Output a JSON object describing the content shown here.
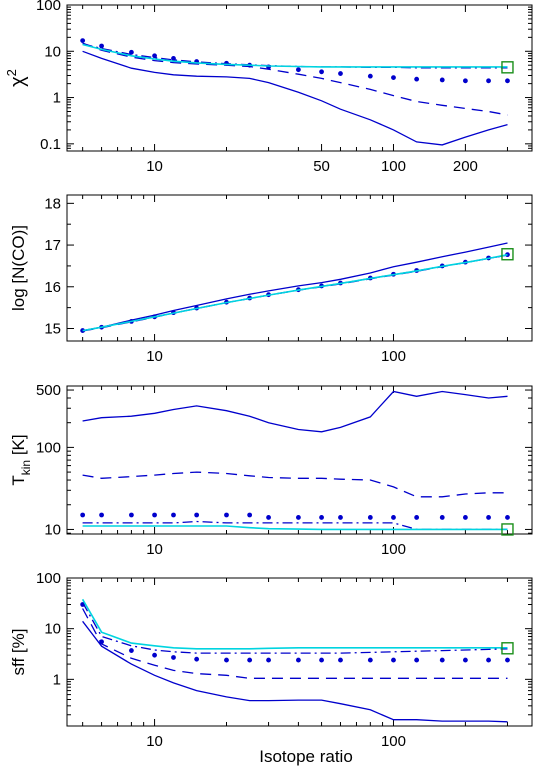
{
  "figure": {
    "xlabel": "Isotope ratio"
  },
  "colors": {
    "series_solid": "#0000cc",
    "series_dashed": "#0000cc",
    "series_dotted": "#0000cc",
    "series_dashdot": "#0000cc",
    "series_cyan": "#00d4e0",
    "marker": "#1a8f1a",
    "axes": "#000000"
  },
  "chart_data": [
    {
      "type": "line",
      "ylabel": "χ",
      "ylabel_sup": "2",
      "xscale": "log",
      "yscale": "log",
      "xlim": [
        4.3,
        380
      ],
      "ylim": [
        0.07,
        100
      ],
      "xticks": [
        10,
        50,
        100,
        200
      ],
      "xtick_labels": [
        "10",
        "50",
        "100",
        "200"
      ],
      "yticks": [
        0.1,
        1,
        10,
        100
      ],
      "ytick_labels": [
        "0.1",
        "1",
        "10",
        "100"
      ],
      "x": [
        5,
        6,
        8,
        10,
        12,
        15,
        20,
        25,
        30,
        40,
        50,
        60,
        80,
        100,
        125,
        160,
        200,
        250,
        300
      ],
      "series": [
        {
          "style": "solid",
          "values": [
            10,
            7,
            4.3,
            3.5,
            3.1,
            2.9,
            2.8,
            2.6,
            2.1,
            1.3,
            0.85,
            0.56,
            0.33,
            0.2,
            0.11,
            0.095,
            0.14,
            0.2,
            0.26
          ]
        },
        {
          "style": "dashed",
          "values": [
            15,
            10.5,
            7.5,
            6.3,
            5.7,
            5.3,
            5.0,
            4.7,
            4.1,
            3.2,
            2.6,
            2.1,
            1.5,
            1.1,
            0.82,
            0.68,
            0.58,
            0.5,
            0.42
          ]
        },
        {
          "style": "dotted",
          "values": [
            17,
            13,
            9.5,
            8,
            7,
            6,
            5.5,
            5,
            4.6,
            4,
            3.6,
            3.3,
            2.9,
            2.7,
            2.5,
            2.4,
            2.3,
            2.3,
            2.3
          ]
        },
        {
          "style": "dashdot",
          "values": [
            14.5,
            11.5,
            8.5,
            7.3,
            6.5,
            5.9,
            5.4,
            5.1,
            4.9,
            4.7,
            4.6,
            4.6,
            4.5,
            4.5,
            4.4,
            4.4,
            4.4,
            4.4,
            4.4
          ]
        },
        {
          "style": "cyan",
          "values": [
            14,
            11,
            8,
            6.8,
            6.1,
            5.6,
            5.2,
            5.0,
            4.8,
            4.7,
            4.6,
            4.6,
            4.6,
            4.6,
            4.6,
            4.6,
            4.6,
            4.6,
            4.6
          ]
        }
      ],
      "marker": {
        "x": 300,
        "y": 4.5,
        "shape": "square"
      }
    },
    {
      "type": "line",
      "ylabel": "log [N(CO)]",
      "xscale": "log",
      "yscale": "linear",
      "xlim": [
        4.3,
        380
      ],
      "ylim": [
        14.7,
        18.2
      ],
      "xticks": [
        10,
        100
      ],
      "xtick_labels": [
        "10",
        "100"
      ],
      "yticks": [
        15,
        16,
        17,
        18
      ],
      "ytick_labels": [
        "15",
        "16",
        "17",
        "18"
      ],
      "x": [
        5,
        6,
        8,
        10,
        12,
        15,
        20,
        25,
        30,
        40,
        50,
        60,
        80,
        100,
        125,
        160,
        200,
        250,
        300
      ],
      "series": [
        {
          "style": "solid",
          "values": [
            14.95,
            15.03,
            15.2,
            15.32,
            15.43,
            15.55,
            15.71,
            15.82,
            15.9,
            16.02,
            16.1,
            16.18,
            16.33,
            16.48,
            16.59,
            16.72,
            16.83,
            16.95,
            17.05
          ]
        },
        {
          "style": "dashed",
          "values": [
            14.94,
            15.02,
            15.16,
            15.27,
            15.37,
            15.48,
            15.62,
            15.72,
            15.8,
            15.92,
            16.0,
            16.07,
            16.19,
            16.28,
            16.37,
            16.48,
            16.58,
            16.68,
            16.76
          ]
        },
        {
          "style": "dotted",
          "values": [
            14.95,
            15.03,
            15.17,
            15.28,
            15.38,
            15.49,
            15.63,
            15.73,
            15.81,
            15.93,
            16.02,
            16.09,
            16.21,
            16.3,
            16.39,
            16.5,
            16.59,
            16.69,
            16.77
          ]
        },
        {
          "style": "dashdot",
          "values": [
            14.95,
            15.03,
            15.17,
            15.28,
            15.37,
            15.48,
            15.62,
            15.72,
            15.8,
            15.92,
            16.01,
            16.08,
            16.2,
            16.29,
            16.38,
            16.49,
            16.58,
            16.68,
            16.76
          ]
        },
        {
          "style": "cyan",
          "values": [
            14.95,
            15.03,
            15.17,
            15.28,
            15.37,
            15.48,
            15.62,
            15.72,
            15.8,
            15.92,
            16.01,
            16.08,
            16.2,
            16.29,
            16.38,
            16.49,
            16.58,
            16.68,
            16.77
          ]
        }
      ],
      "marker": {
        "x": 300,
        "y": 16.78,
        "shape": "square"
      }
    },
    {
      "type": "line",
      "ylabel": "T",
      "ylabel_sub": "kin",
      "ylabel_suffix": " [K]",
      "xscale": "log",
      "yscale": "log",
      "xlim": [
        4.3,
        380
      ],
      "ylim": [
        8.8,
        560
      ],
      "xticks": [
        10,
        100
      ],
      "xtick_labels": [
        "10",
        "100"
      ],
      "yticks": [
        10,
        100,
        500
      ],
      "ytick_labels": [
        "10",
        "100",
        "500"
      ],
      "x": [
        5,
        6,
        8,
        10,
        12,
        15,
        20,
        25,
        30,
        40,
        50,
        60,
        80,
        100,
        125,
        160,
        200,
        250,
        300
      ],
      "series": [
        {
          "style": "solid",
          "values": [
            210,
            230,
            240,
            260,
            290,
            320,
            280,
            240,
            200,
            165,
            155,
            175,
            235,
            480,
            420,
            480,
            440,
            400,
            420
          ]
        },
        {
          "style": "dashed",
          "values": [
            46,
            42,
            44,
            46,
            48,
            50,
            48,
            45,
            43,
            42,
            42,
            41,
            40,
            33,
            25,
            25,
            27,
            28,
            28
          ]
        },
        {
          "style": "dotted",
          "values": [
            15,
            15,
            15,
            15,
            15,
            15,
            15,
            15,
            14,
            14,
            14,
            14,
            14,
            14,
            14,
            14,
            14,
            14,
            14
          ]
        },
        {
          "style": "dashdot",
          "values": [
            12,
            12,
            12,
            12,
            12,
            12.5,
            12,
            12,
            12,
            12,
            12,
            12,
            12,
            12,
            10,
            10,
            10,
            10,
            10
          ]
        },
        {
          "style": "cyan",
          "values": [
            11,
            11,
            11,
            11,
            11,
            11,
            11,
            10.5,
            10.2,
            10.1,
            10,
            10,
            10,
            10,
            10,
            10,
            10,
            10,
            10
          ]
        }
      ],
      "marker": {
        "x": 300,
        "y": 10,
        "shape": "square"
      }
    },
    {
      "type": "line",
      "ylabel": "sff [%]",
      "xscale": "log",
      "yscale": "log",
      "xlim": [
        4.3,
        380
      ],
      "ylim": [
        0.12,
        100
      ],
      "xticks": [
        10,
        100
      ],
      "xtick_labels": [
        "10",
        "100"
      ],
      "yticks": [
        1,
        10,
        100
      ],
      "ytick_labels": [
        "1",
        "10",
        "100"
      ],
      "x": [
        5,
        6,
        8,
        10,
        12,
        15,
        20,
        25,
        30,
        40,
        50,
        60,
        80,
        100,
        125,
        160,
        200,
        250,
        300
      ],
      "series": [
        {
          "style": "solid",
          "values": [
            14,
            4.5,
            2.0,
            1.2,
            0.85,
            0.6,
            0.45,
            0.38,
            0.38,
            0.39,
            0.39,
            0.33,
            0.25,
            0.16,
            0.16,
            0.15,
            0.15,
            0.15,
            0.145
          ]
        },
        {
          "style": "dashed",
          "values": [
            25,
            5,
            2.6,
            1.9,
            1.5,
            1.3,
            1.2,
            1.05,
            1.05,
            1.05,
            1.05,
            1.05,
            1.05,
            1.05,
            1.05,
            1.05,
            1.05,
            1.05,
            1.05
          ]
        },
        {
          "style": "dotted",
          "values": [
            30,
            5.5,
            3.7,
            3.0,
            2.7,
            2.5,
            2.4,
            2.4,
            2.4,
            2.4,
            2.4,
            2.4,
            2.4,
            2.4,
            2.4,
            2.4,
            2.4,
            2.4,
            2.4
          ]
        },
        {
          "style": "dashdot",
          "values": [
            33,
            7,
            4.6,
            3.8,
            3.5,
            3.3,
            3.3,
            3.3,
            3.3,
            3.3,
            3.3,
            3.3,
            3.4,
            3.5,
            3.6,
            3.7,
            3.8,
            3.9,
            4.0
          ]
        },
        {
          "style": "cyan",
          "values": [
            38,
            8.5,
            5.2,
            4.6,
            4.2,
            4.0,
            4.0,
            4.0,
            4.1,
            4.2,
            4.2,
            4.2,
            4.2,
            4.2,
            4.2,
            4.2,
            4.2,
            4.2,
            4.2
          ]
        }
      ],
      "marker": {
        "x": 300,
        "y": 4.1,
        "shape": "square"
      }
    }
  ]
}
